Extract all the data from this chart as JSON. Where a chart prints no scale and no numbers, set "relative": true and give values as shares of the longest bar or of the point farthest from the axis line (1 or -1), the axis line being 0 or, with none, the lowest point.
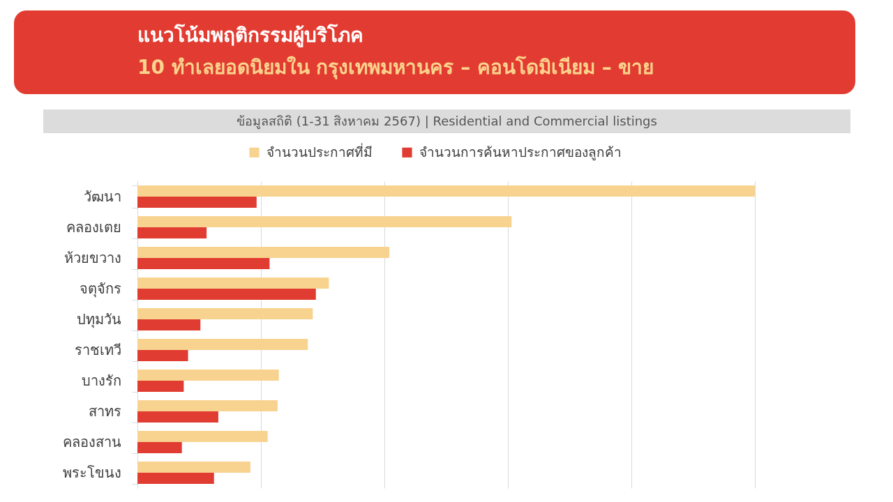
{
  "chart_data": {
    "type": "bar",
    "orientation": "horizontal",
    "relative": true,
    "title": "แนวโน้มพฤติกรรมผู้บริโภค",
    "subtitle": "10 ทำเลยอดนิยมใน กรุงเทพมหานคร – คอนโดมิเนียม – ขาย",
    "annotations": [
      "ข้อมูลสถิติ (1-31 สิงหาคม 2567) | Residential and Commercial listings"
    ],
    "categories": [
      "วัฒนา",
      "คลองเตย",
      "ห้วยขวาง",
      "จตุจักร",
      "ปทุมวัน",
      "ราชเทวี",
      "บางรัก",
      "สาทร",
      "คลองสาน",
      "พระโขนง"
    ],
    "series": [
      {
        "name": "จำนวนประกาศที่มี",
        "color": "#f8d38f",
        "values": [
          1,
          0.606,
          0.408,
          0.31,
          0.284,
          0.276,
          0.229,
          0.227,
          0.211,
          0.183
        ]
      },
      {
        "name": "จำนวนการค้นหาประกาศของลูกค้า",
        "color": "#e03c31",
        "values": [
          0.193,
          0.112,
          0.214,
          0.289,
          0.102,
          0.082,
          0.075,
          0.131,
          0.072,
          0.124
        ]
      }
    ],
    "grid": "x",
    "legend": "top"
  }
}
